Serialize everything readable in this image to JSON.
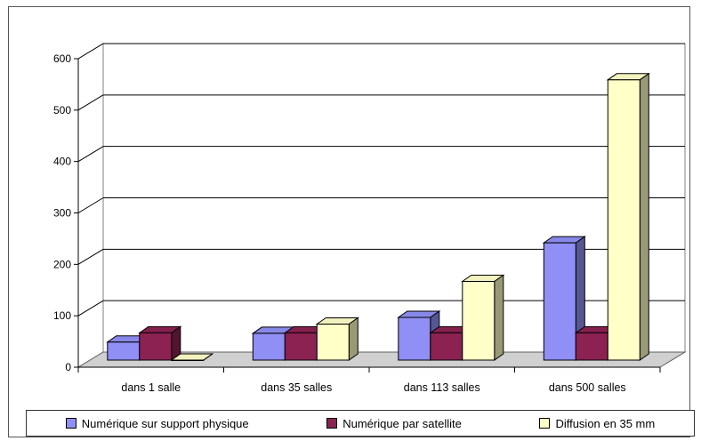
{
  "chart_data": {
    "type": "bar",
    "categories": [
      "dans 1 salle",
      "dans 35 salles",
      "dans 113 salles",
      "dans 500 salles"
    ],
    "series": [
      {
        "name": "Numérique sur support physique",
        "values": [
          35,
          52,
          83,
          228
        ],
        "color": "#8F8FF5"
      },
      {
        "name": "Numérique par satellite",
        "values": [
          53,
          53,
          53,
          53
        ],
        "color": "#8B2252"
      },
      {
        "name": "Diffusion en 35 mm",
        "values": [
          0,
          70,
          153,
          545
        ],
        "color": "#FFFFC8"
      }
    ],
    "yticks": [
      "0",
      "100",
      "200",
      "300",
      "400",
      "500",
      "600"
    ],
    "ylim": [
      0,
      600
    ],
    "grid": true,
    "legend_position": "bottom",
    "style": "3d-clustered-column"
  }
}
